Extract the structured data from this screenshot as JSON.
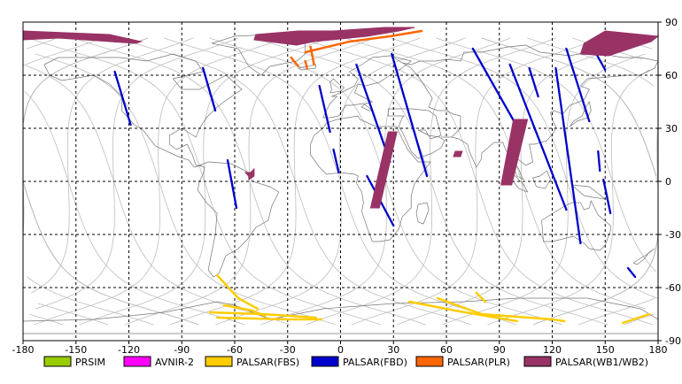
{
  "chart_data": {
    "type": "map",
    "xlim": [
      -180,
      180
    ],
    "ylim": [
      -90,
      90
    ],
    "grid": true,
    "legend_position": "bottom",
    "x_ticks": [
      -180,
      -150,
      -120,
      -90,
      -60,
      -30,
      0,
      30,
      60,
      90,
      120,
      150,
      180
    ],
    "y_ticks": [
      90,
      60,
      30,
      0,
      -30,
      -60,
      -90
    ],
    "legend": [
      {
        "label": "PRSIM",
        "color": "#99cc00"
      },
      {
        "label": "AVNIR-2",
        "color": "#ff00ff"
      },
      {
        "label": "PALSAR(FBS)",
        "color": "#ffcc00"
      },
      {
        "label": "PALSAR(FBD)",
        "color": "#0000cc"
      },
      {
        "label": "PALSAR(PLR)",
        "color": "#ff6600"
      },
      {
        "label": "PALSAR(WB1/WB2)",
        "color": "#993366"
      }
    ],
    "series": [
      {
        "name": "PALSAR(FBD)",
        "color": "#0000cc",
        "segments": [
          [
            [
              -128,
              62
            ],
            [
              -119,
              32
            ]
          ],
          [
            [
              -78,
              64
            ],
            [
              -71,
              40
            ]
          ],
          [
            [
              -64,
              12
            ],
            [
              -59,
              -15
            ]
          ],
          [
            [
              -12,
              54
            ],
            [
              -6,
              28
            ]
          ],
          [
            [
              -4,
              18
            ],
            [
              -1,
              5
            ]
          ],
          [
            [
              9,
              66
            ],
            [
              28,
              11
            ]
          ],
          [
            [
              29,
              72
            ],
            [
              49,
              3
            ]
          ],
          [
            [
              15,
              3
            ],
            [
              30,
              -25
            ]
          ],
          [
            [
              75,
              75
            ],
            [
              100,
              31
            ]
          ],
          [
            [
              96,
              66
            ],
            [
              128,
              -16
            ]
          ],
          [
            [
              107,
              64
            ],
            [
              112,
              48
            ]
          ],
          [
            [
              122,
              64
            ],
            [
              136,
              -35
            ]
          ],
          [
            [
              128,
              75
            ],
            [
              141,
              34
            ]
          ],
          [
            [
              146,
              17
            ],
            [
              147,
              6
            ]
          ],
          [
            [
              149,
              1
            ],
            [
              153,
              -18
            ]
          ],
          [
            [
              145,
              72
            ],
            [
              150,
              63
            ]
          ],
          [
            [
              163,
              -49
            ],
            [
              167,
              -54
            ]
          ]
        ]
      },
      {
        "name": "PALSAR(FBS)",
        "color": "#ffcc00",
        "segments": [
          [
            [
              -70,
              -53
            ],
            [
              -58,
              -66
            ],
            [
              -47,
              -72
            ]
          ],
          [
            [
              -74,
              -74
            ],
            [
              -44,
              -75
            ],
            [
              -14,
              -77
            ]
          ],
          [
            [
              -70,
              -77
            ],
            [
              -30,
              -78
            ],
            [
              -11,
              -78
            ]
          ],
          [
            [
              -66,
              -70
            ],
            [
              -50,
              -73
            ],
            [
              -43,
              -76
            ]
          ],
          [
            [
              55,
              -66
            ],
            [
              80,
              -75
            ],
            [
              120,
              -78
            ],
            [
              127,
              -79
            ]
          ],
          [
            [
              39,
              -68
            ],
            [
              65,
              -73
            ],
            [
              100,
              -79
            ]
          ],
          [
            [
              77,
              -63
            ],
            [
              82,
              -68
            ]
          ],
          [
            [
              160,
              -80
            ],
            [
              175,
              -75
            ]
          ]
        ]
      },
      {
        "name": "PALSAR(PLR)",
        "color": "#ff6600",
        "segments": [
          [
            [
              -20,
              73
            ],
            [
              5,
              79
            ],
            [
              28,
              82
            ],
            [
              46,
              85
            ]
          ],
          [
            [
              -28,
              70
            ],
            [
              -24,
              65
            ]
          ],
          [
            [
              -17,
              76
            ],
            [
              -15,
              66
            ]
          ],
          [
            [
              -20,
              68
            ],
            [
              -19,
              64
            ]
          ]
        ]
      },
      {
        "name": "PALSAR(WB1/WB2)",
        "color": "#993366",
        "swaths": [
          [
            [
              -180,
              85
            ],
            [
              -131,
              83
            ],
            [
              -113,
              79
            ],
            [
              -116,
              78
            ],
            [
              -160,
              81
            ],
            [
              -180,
              80
            ]
          ],
          [
            [
              -48,
              83
            ],
            [
              -24,
              85
            ],
            [
              -4,
              85
            ],
            [
              25,
              87
            ],
            [
              42,
              87
            ],
            [
              33,
              85
            ],
            [
              15,
              82
            ],
            [
              -15,
              79
            ],
            [
              -25,
              77
            ],
            [
              -49,
              80
            ]
          ],
          [
            [
              138,
              78
            ],
            [
              150,
              85
            ],
            [
              180,
              82
            ],
            [
              176,
              79
            ],
            [
              152,
              71
            ],
            [
              136,
              72
            ]
          ],
          [
            [
              -54,
              5
            ],
            [
              -51,
              5
            ],
            [
              -49,
              7
            ],
            [
              -49,
              3
            ],
            [
              -52,
              1
            ],
            [
              -52,
              3
            ]
          ],
          [
            [
              27,
              28
            ],
            [
              32,
              28
            ],
            [
              22,
              -15
            ],
            [
              17,
              -15
            ]
          ],
          [
            [
              98,
              35
            ],
            [
              106,
              35
            ],
            [
              97,
              -2
            ],
            [
              91,
              -2
            ]
          ],
          [
            [
              65,
              17
            ],
            [
              69,
              17
            ],
            [
              68,
              14
            ],
            [
              64,
              14
            ]
          ]
        ]
      }
    ]
  }
}
